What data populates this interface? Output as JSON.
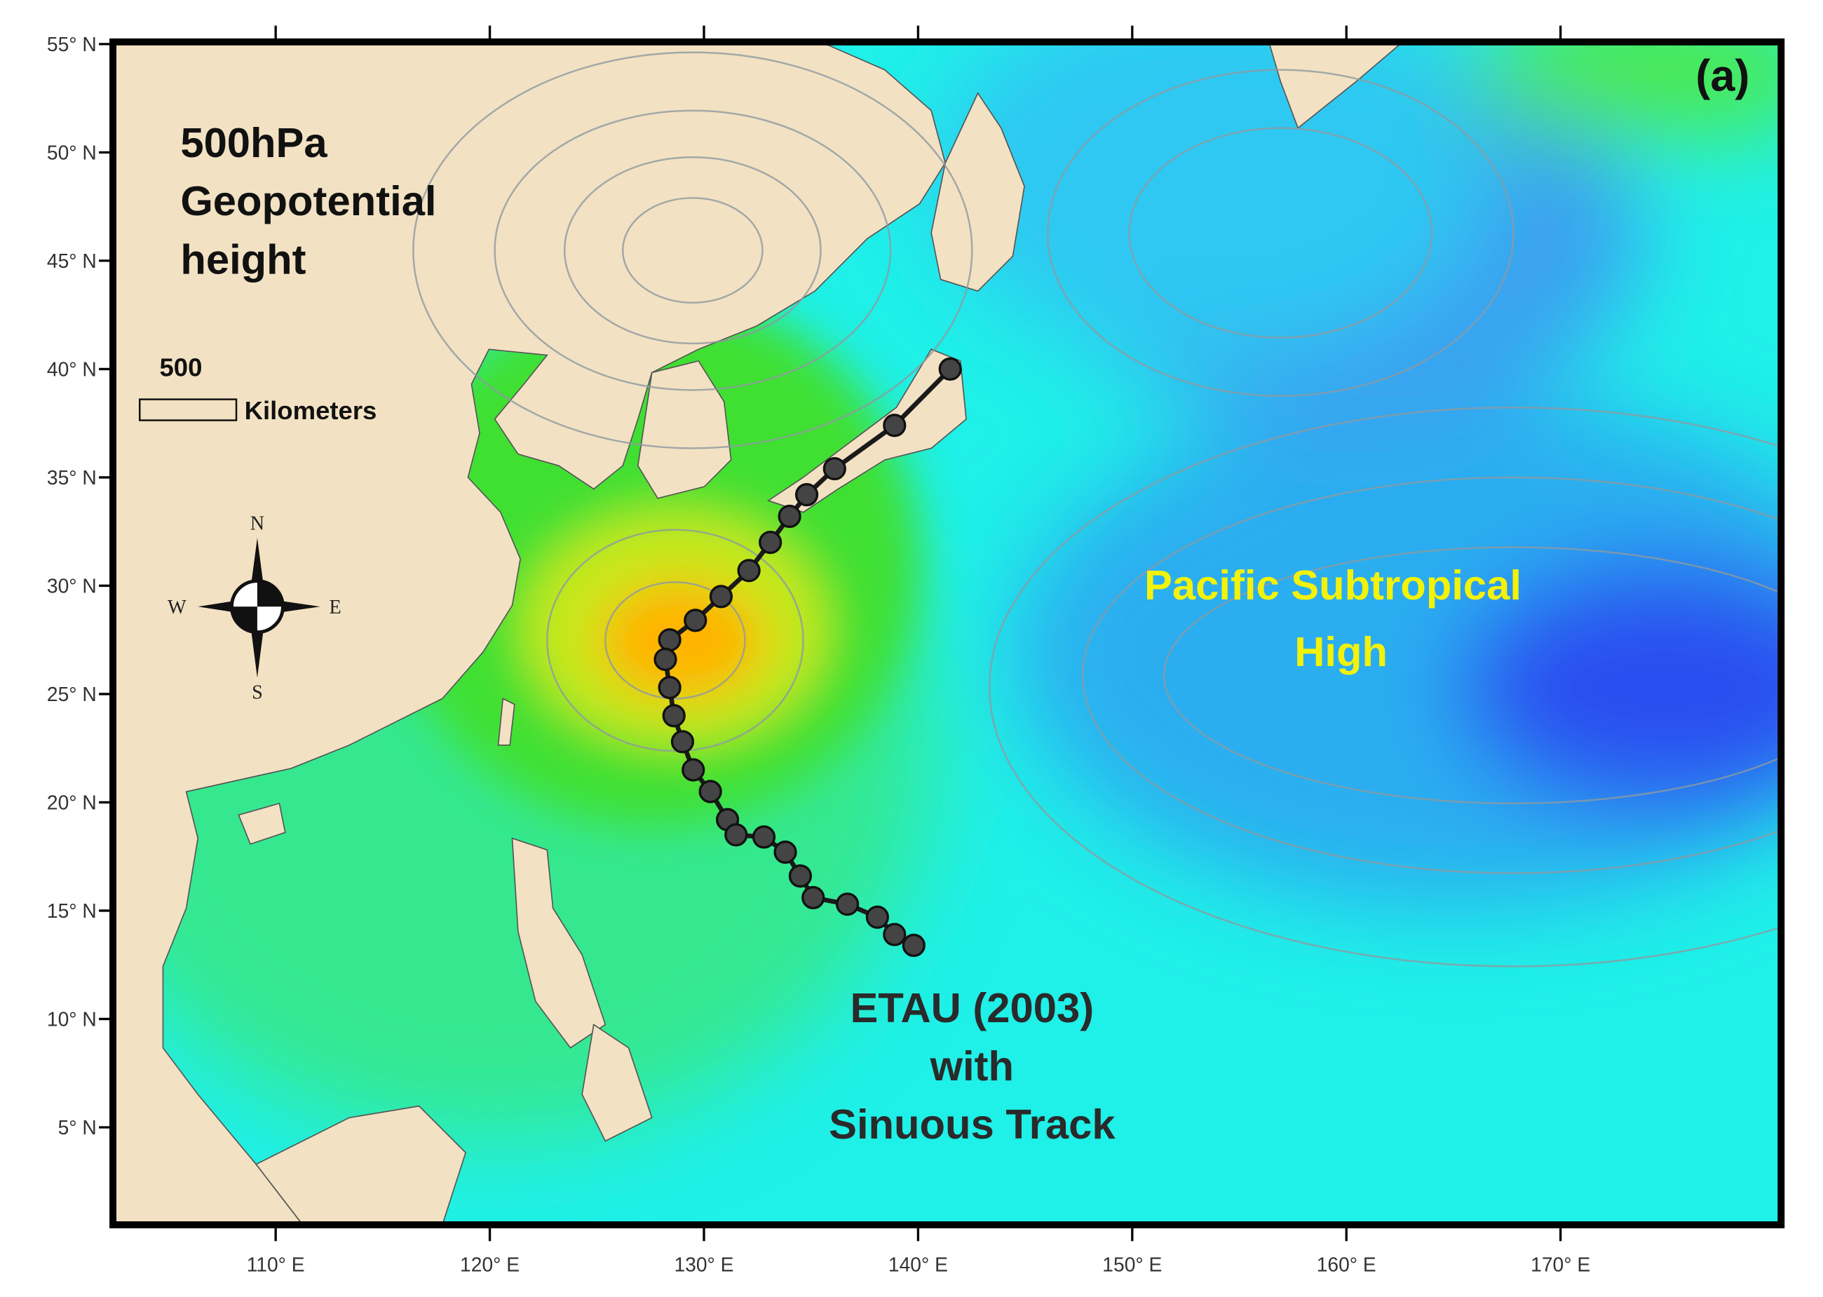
{
  "map": {
    "panel_label": "(a)",
    "field_title": [
      "500hPa",
      "Geopotential",
      "height"
    ],
    "scale_bar": {
      "value_label": "500",
      "unit": "Kilometers"
    },
    "compass": {
      "n": "N",
      "s": "S",
      "e": "E",
      "w": "W"
    },
    "high_label": [
      "Pacific Subtropical",
      "High"
    ],
    "track_label": [
      "ETAU (2003)",
      "with",
      "Sinuous Track"
    ],
    "xlim": [
      102.4,
      180.3
    ],
    "ylim": [
      0.5,
      55.1
    ],
    "xticks": [
      {
        "value": 110,
        "label": "110° E"
      },
      {
        "value": 120,
        "label": "120° E"
      },
      {
        "value": 130,
        "label": "130° E"
      },
      {
        "value": 140,
        "label": "140° E"
      },
      {
        "value": 150,
        "label": "150° E"
      },
      {
        "value": 160,
        "label": "160° E"
      },
      {
        "value": 170,
        "label": "170° E"
      }
    ],
    "yticks": [
      {
        "value": 5,
        "label": "5° N"
      },
      {
        "value": 10,
        "label": "10° N"
      },
      {
        "value": 15,
        "label": "15° N"
      },
      {
        "value": 20,
        "label": "20° N"
      },
      {
        "value": 25,
        "label": "25° N"
      },
      {
        "value": 30,
        "label": "30° N"
      },
      {
        "value": 35,
        "label": "35° N"
      },
      {
        "value": 40,
        "label": "40° N"
      },
      {
        "value": 45,
        "label": "45° N"
      },
      {
        "value": 50,
        "label": "50° N"
      },
      {
        "value": 55,
        "label": "55° N"
      }
    ],
    "track_lon": [
      141.5,
      138.9,
      136.1,
      134.8,
      134.0,
      133.1,
      132.1,
      130.8,
      129.6,
      128.4,
      128.2,
      128.4,
      128.6,
      129.0,
      129.5,
      130.3,
      131.1,
      131.5,
      132.8,
      133.8,
      134.5,
      135.1,
      136.7,
      138.1,
      138.9,
      139.8
    ],
    "track_lat": [
      40.0,
      37.4,
      35.4,
      34.2,
      33.2,
      32.0,
      30.7,
      29.5,
      28.4,
      27.5,
      26.6,
      25.3,
      24.0,
      22.8,
      21.5,
      20.5,
      19.2,
      18.5,
      18.4,
      17.7,
      16.6,
      15.6,
      15.3,
      14.7,
      13.9,
      13.4
    ]
  }
}
